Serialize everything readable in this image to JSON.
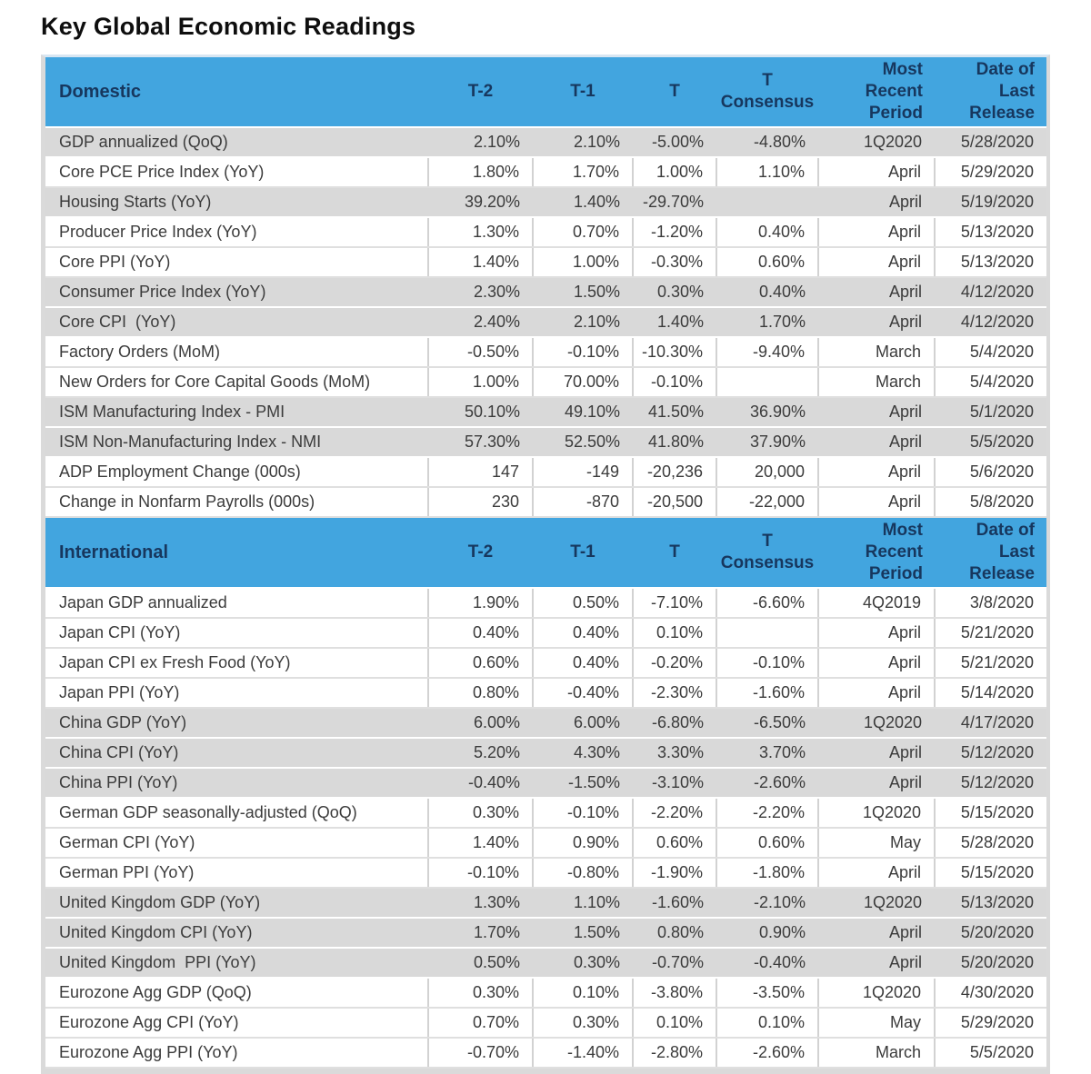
{
  "title": "Key Global Economic Readings",
  "colors": {
    "header_bg": "#42A5DF",
    "header_text": "#17375E",
    "row_shaded": "#D9D9D9",
    "row_plain": "#FFFFFF",
    "body_text": "#3B3B3B"
  },
  "chart_data": {
    "type": "table",
    "title": "Key Global Economic Readings",
    "columns": [
      "T-2",
      "T-1",
      "T",
      "T Consensus",
      "Most Recent Period",
      "Date of Last Release"
    ],
    "sections": [
      {
        "label": "Domestic",
        "rows": [
          {
            "label": "GDP annualized (QoQ)",
            "t2": "2.10%",
            "t1": "2.10%",
            "t": "-5.00%",
            "consensus": "-4.80%",
            "period": "1Q2020",
            "release": "5/28/2020",
            "shaded": true
          },
          {
            "label": "Core PCE Price Index (YoY)",
            "t2": "1.80%",
            "t1": "1.70%",
            "t": "1.00%",
            "consensus": "1.10%",
            "period": "April",
            "release": "5/29/2020",
            "shaded": false
          },
          {
            "label": "Housing Starts (YoY)",
            "t2": "39.20%",
            "t1": "1.40%",
            "t": "-29.70%",
            "consensus": "",
            "period": "April",
            "release": "5/19/2020",
            "shaded": true
          },
          {
            "label": "Producer Price Index (YoY)",
            "t2": "1.30%",
            "t1": "0.70%",
            "t": "-1.20%",
            "consensus": "0.40%",
            "period": "April",
            "release": "5/13/2020",
            "shaded": false
          },
          {
            "label": "Core PPI (YoY)",
            "t2": "1.40%",
            "t1": "1.00%",
            "t": "-0.30%",
            "consensus": "0.60%",
            "period": "April",
            "release": "5/13/2020",
            "shaded": false
          },
          {
            "label": "Consumer Price Index (YoY)",
            "t2": "2.30%",
            "t1": "1.50%",
            "t": "0.30%",
            "consensus": "0.40%",
            "period": "April",
            "release": "4/12/2020",
            "shaded": true
          },
          {
            "label": "Core CPI  (YoY)",
            "t2": "2.40%",
            "t1": "2.10%",
            "t": "1.40%",
            "consensus": "1.70%",
            "period": "April",
            "release": "4/12/2020",
            "shaded": true
          },
          {
            "label": "Factory Orders (MoM)",
            "t2": "-0.50%",
            "t1": "-0.10%",
            "t": "-10.30%",
            "consensus": "-9.40%",
            "period": "March",
            "release": "5/4/2020",
            "shaded": false
          },
          {
            "label": "New Orders for Core Capital Goods (MoM)",
            "t2": "1.00%",
            "t1": "70.00%",
            "t": "-0.10%",
            "consensus": "",
            "period": "March",
            "release": "5/4/2020",
            "shaded": false
          },
          {
            "label": "ISM Manufacturing Index - PMI",
            "t2": "50.10%",
            "t1": "49.10%",
            "t": "41.50%",
            "consensus": "36.90%",
            "period": "April",
            "release": "5/1/2020",
            "shaded": true
          },
          {
            "label": "ISM Non-Manufacturing Index - NMI",
            "t2": "57.30%",
            "t1": "52.50%",
            "t": "41.80%",
            "consensus": "37.90%",
            "period": "April",
            "release": "5/5/2020",
            "shaded": true
          },
          {
            "label": "ADP Employment Change (000s)",
            "t2": "147",
            "t1": "-149",
            "t": "-20,236",
            "consensus": "20,000",
            "period": "April",
            "release": "5/6/2020",
            "shaded": false
          },
          {
            "label": "Change in Nonfarm Payrolls (000s)",
            "t2": "230",
            "t1": "-870",
            "t": "-20,500",
            "consensus": "-22,000",
            "period": "April",
            "release": "5/8/2020",
            "shaded": false
          }
        ]
      },
      {
        "label": "International",
        "rows": [
          {
            "label": "Japan GDP annualized",
            "t2": "1.90%",
            "t1": "0.50%",
            "t": "-7.10%",
            "consensus": "-6.60%",
            "period": "4Q2019",
            "release": "3/8/2020",
            "shaded": false
          },
          {
            "label": "Japan CPI (YoY)",
            "t2": "0.40%",
            "t1": "0.40%",
            "t": "0.10%",
            "consensus": "",
            "period": "April",
            "release": "5/21/2020",
            "shaded": false
          },
          {
            "label": "Japan CPI ex Fresh Food (YoY)",
            "t2": "0.60%",
            "t1": "0.40%",
            "t": "-0.20%",
            "consensus": "-0.10%",
            "period": "April",
            "release": "5/21/2020",
            "shaded": false
          },
          {
            "label": "Japan PPI (YoY)",
            "t2": "0.80%",
            "t1": "-0.40%",
            "t": "-2.30%",
            "consensus": "-1.60%",
            "period": "April",
            "release": "5/14/2020",
            "shaded": false
          },
          {
            "label": "China GDP (YoY)",
            "t2": "6.00%",
            "t1": "6.00%",
            "t": "-6.80%",
            "consensus": "-6.50%",
            "period": "1Q2020",
            "release": "4/17/2020",
            "shaded": true
          },
          {
            "label": "China CPI (YoY)",
            "t2": "5.20%",
            "t1": "4.30%",
            "t": "3.30%",
            "consensus": "3.70%",
            "period": "April",
            "release": "5/12/2020",
            "shaded": true
          },
          {
            "label": "China PPI (YoY)",
            "t2": "-0.40%",
            "t1": "-1.50%",
            "t": "-3.10%",
            "consensus": "-2.60%",
            "period": "April",
            "release": "5/12/2020",
            "shaded": true
          },
          {
            "label": "German GDP seasonally-adjusted (QoQ)",
            "t2": "0.30%",
            "t1": "-0.10%",
            "t": "-2.20%",
            "consensus": "-2.20%",
            "period": "1Q2020",
            "release": "5/15/2020",
            "shaded": false
          },
          {
            "label": "German CPI (YoY)",
            "t2": "1.40%",
            "t1": "0.90%",
            "t": "0.60%",
            "consensus": "0.60%",
            "period": "May",
            "release": "5/28/2020",
            "shaded": false
          },
          {
            "label": "German PPI (YoY)",
            "t2": "-0.10%",
            "t1": "-0.80%",
            "t": "-1.90%",
            "consensus": "-1.80%",
            "period": "April",
            "release": "5/15/2020",
            "shaded": false
          },
          {
            "label": "United Kingdom GDP (YoY)",
            "t2": "1.30%",
            "t1": "1.10%",
            "t": "-1.60%",
            "consensus": "-2.10%",
            "period": "1Q2020",
            "release": "5/13/2020",
            "shaded": true
          },
          {
            "label": "United Kingdom CPI (YoY)",
            "t2": "1.70%",
            "t1": "1.50%",
            "t": "0.80%",
            "consensus": "0.90%",
            "period": "April",
            "release": "5/20/2020",
            "shaded": true
          },
          {
            "label": "United Kingdom  PPI (YoY)",
            "t2": "0.50%",
            "t1": "0.30%",
            "t": "-0.70%",
            "consensus": "-0.40%",
            "period": "April",
            "release": "5/20/2020",
            "shaded": true
          },
          {
            "label": "Eurozone Agg GDP (QoQ)",
            "t2": "0.30%",
            "t1": "0.10%",
            "t": "-3.80%",
            "consensus": "-3.50%",
            "period": "1Q2020",
            "release": "4/30/2020",
            "shaded": false
          },
          {
            "label": "Eurozone Agg CPI (YoY)",
            "t2": "0.70%",
            "t1": "0.30%",
            "t": "0.10%",
            "consensus": "0.10%",
            "period": "May",
            "release": "5/29/2020",
            "shaded": false
          },
          {
            "label": "Eurozone Agg PPI (YoY)",
            "t2": "-0.70%",
            "t1": "-1.40%",
            "t": "-2.80%",
            "consensus": "-2.60%",
            "period": "March",
            "release": "5/5/2020",
            "shaded": false
          }
        ]
      }
    ]
  }
}
